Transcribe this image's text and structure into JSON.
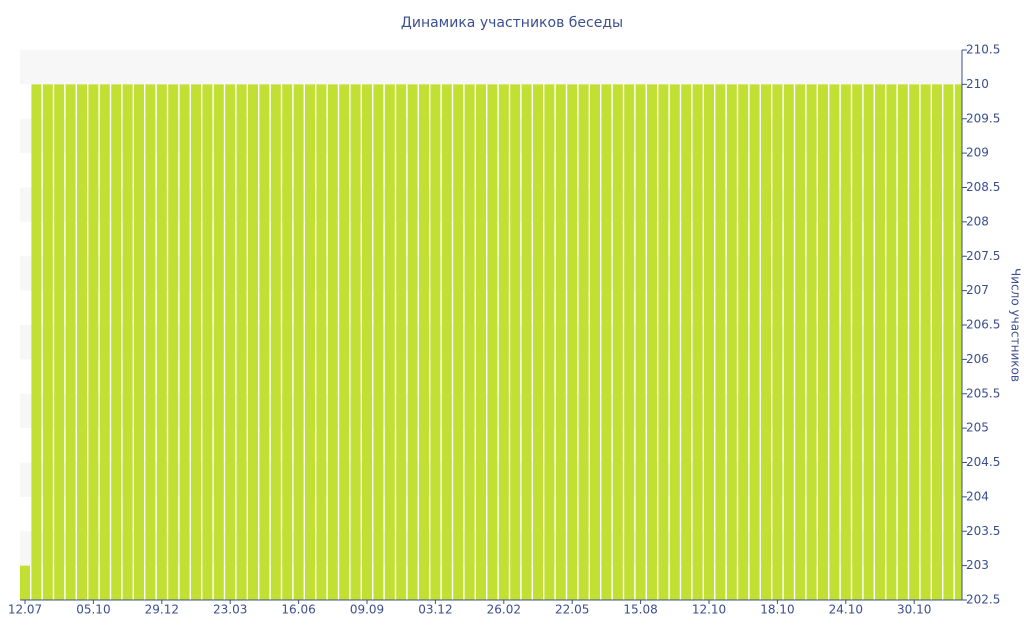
{
  "chart_data": {
    "type": "bar",
    "title": "Динамика участников беседы",
    "y_label": "Число участников",
    "color": "#c2df34",
    "grid": true,
    "y_axis_side": "right",
    "categories": [
      "12.07",
      null,
      null,
      null,
      null,
      null,
      "05.10",
      null,
      null,
      null,
      null,
      null,
      "29.12",
      null,
      null,
      null,
      null,
      null,
      "23.03",
      null,
      null,
      null,
      null,
      null,
      "16.06",
      null,
      null,
      null,
      null,
      null,
      "09.09",
      null,
      null,
      null,
      null,
      null,
      "03.12",
      null,
      null,
      null,
      null,
      null,
      "26.02",
      null,
      null,
      null,
      null,
      null,
      "22.05",
      null,
      null,
      null,
      null,
      null,
      "15.08",
      null,
      null,
      null,
      null,
      null,
      "12.10",
      null,
      null,
      null,
      null,
      null,
      "18.10",
      null,
      null,
      null,
      null,
      null,
      "24.10",
      null,
      null,
      null,
      null,
      null,
      "30.10",
      null,
      null,
      null,
      null
    ],
    "values": [
      203,
      210,
      210,
      210,
      210,
      210,
      210,
      210,
      210,
      210,
      210,
      210,
      210,
      210,
      210,
      210,
      210,
      210,
      210,
      210,
      210,
      210,
      210,
      210,
      210,
      210,
      210,
      210,
      210,
      210,
      210,
      210,
      210,
      210,
      210,
      210,
      210,
      210,
      210,
      210,
      210,
      210,
      210,
      210,
      210,
      210,
      210,
      210,
      210,
      210,
      210,
      210,
      210,
      210,
      210,
      210,
      210,
      210,
      210,
      210,
      210,
      210,
      210,
      210,
      210,
      210,
      210,
      210,
      210,
      210,
      210,
      210,
      210,
      210,
      210,
      210,
      210,
      210,
      210,
      210,
      210,
      210,
      210
    ],
    "ylim": [
      202.5,
      210.5
    ],
    "yticks": [
      202.5,
      203,
      203.5,
      204,
      204.5,
      205,
      205.5,
      206,
      206.5,
      207,
      207.5,
      208,
      208.5,
      209,
      209.5,
      210,
      210.5
    ]
  }
}
